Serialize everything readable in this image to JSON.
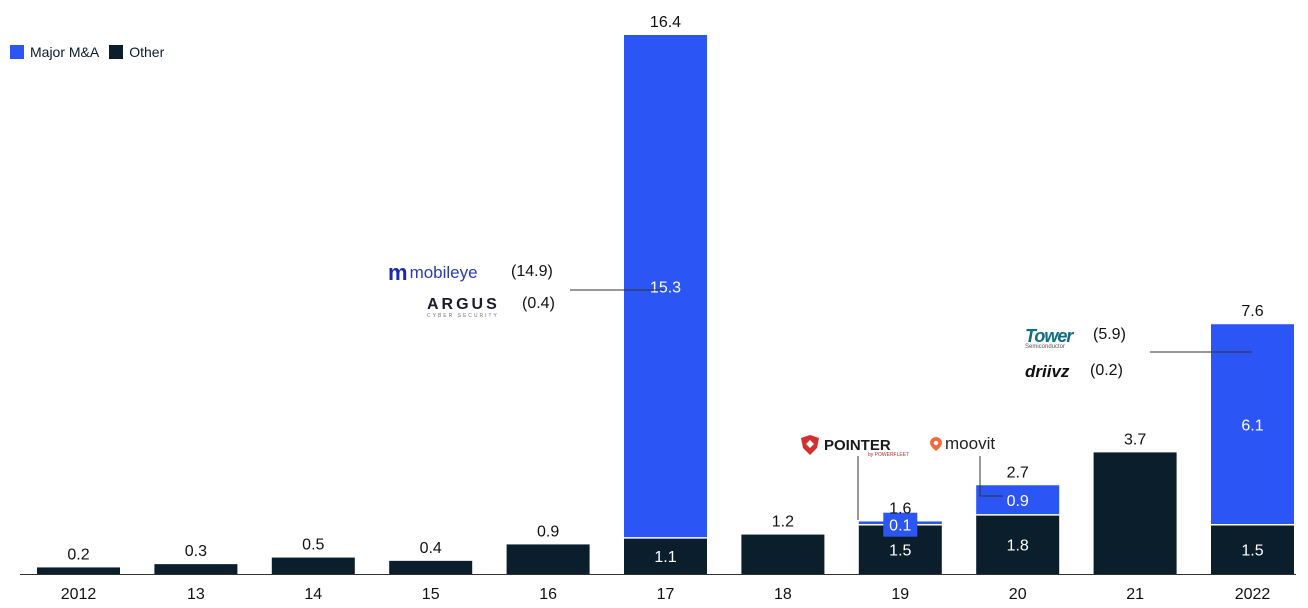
{
  "chart_data": {
    "type": "bar",
    "stacked": true,
    "categories": [
      "2012",
      "13",
      "14",
      "15",
      "16",
      "17",
      "18",
      "19",
      "20",
      "21",
      "2022"
    ],
    "series": [
      {
        "name": "Other",
        "color": "#0b1e2b",
        "values": [
          0.2,
          0.3,
          0.5,
          0.4,
          0.9,
          1.1,
          1.2,
          1.5,
          1.8,
          3.7,
          1.5
        ]
      },
      {
        "name": "Major M&A",
        "color": "#2c55f5",
        "values": [
          0,
          0,
          0,
          0,
          0,
          15.3,
          0,
          0.1,
          0.9,
          0,
          6.1
        ]
      }
    ],
    "totals": [
      0.2,
      0.3,
      0.5,
      0.4,
      0.9,
      16.4,
      1.2,
      1.6,
      2.7,
      3.7,
      7.6
    ],
    "segment_labels": {
      "other": [
        "",
        "",
        "",
        "",
        "",
        "1.1",
        "",
        "1.5",
        "1.8",
        "",
        "1.5"
      ],
      "major": [
        "",
        "",
        "",
        "",
        "",
        "15.3",
        "",
        "0.1",
        "0.9",
        "",
        "6.1"
      ]
    },
    "total_labels": [
      "0.2",
      "0.3",
      "0.5",
      "0.4",
      "0.9",
      "16.4",
      "1.2",
      "1.6",
      "2.7",
      "3.7",
      "7.6"
    ],
    "ylim": [
      0,
      16.4
    ],
    "grid": false,
    "legend_position": "top-left"
  },
  "legend": {
    "major_label": "Major M&A",
    "other_label": "Other"
  },
  "annotations": {
    "mobileye_logo": "mobileye",
    "mobileye_value": "(14.9)",
    "argus_logo": "ARGUS",
    "argus_sub": "CYBER SECURITY",
    "argus_value": "(0.4)",
    "tower_logo": "Tower",
    "tower_sub": "Semiconductor",
    "tower_value": "(5.9)",
    "driivz_logo": "driivz",
    "driivz_value": "(0.2)",
    "pointer_logo": "POINTER",
    "pointer_sub": "by POWERFLEET",
    "moovit_logo": "moovit"
  },
  "colors": {
    "major": "#2c55f5",
    "other": "#0b1e2b",
    "axis": "#333333"
  }
}
